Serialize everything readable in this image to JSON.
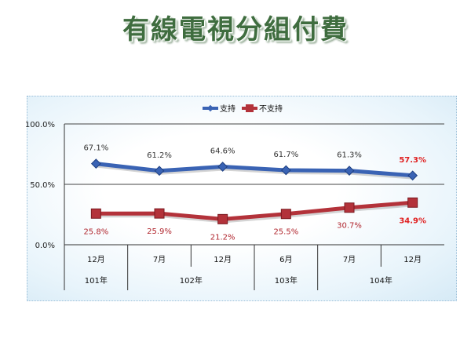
{
  "title": "有線電視分組付費",
  "chart_data": {
    "type": "line",
    "title": "有線電視分組付費",
    "categories": [
      "12月",
      "7月",
      "12月",
      "6月",
      "7月",
      "12月"
    ],
    "year_groups": [
      {
        "label": "101年",
        "span": 1
      },
      {
        "label": "102年",
        "span": 2
      },
      {
        "label": "103年",
        "span": 1
      },
      {
        "label": "104年",
        "span": 2
      }
    ],
    "series": [
      {
        "name": "支持",
        "values": [
          67.1,
          61.2,
          64.6,
          61.7,
          61.3,
          57.3
        ],
        "color": "#3a63b4"
      },
      {
        "name": "不支持",
        "values": [
          25.8,
          25.9,
          21.2,
          25.5,
          30.7,
          34.9
        ],
        "color": "#b3323a"
      }
    ],
    "data_labels": {
      "支持": [
        "67.1%",
        "61.2%",
        "64.6%",
        "61.7%",
        "61.3%",
        "57.3%"
      ],
      "不支持": [
        "25.8%",
        "25.9%",
        "21.2%",
        "25.5%",
        "30.7%",
        "34.9%"
      ]
    },
    "highlight_label_color": "#e02020",
    "label_color": "#333333",
    "ylim": [
      0,
      100
    ],
    "yticks": [
      "0.0%",
      "50.0%",
      "100.0%"
    ],
    "grid": true,
    "legend": "top-center"
  }
}
